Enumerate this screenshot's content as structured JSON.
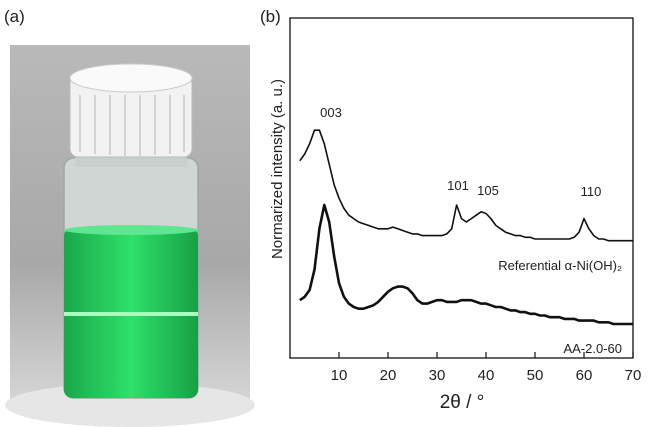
{
  "panel_labels": [
    "(a)",
    "(b)"
  ],
  "chart_data": {
    "type": "line",
    "xlabel": "2θ / °",
    "ylabel": "Normarized intensity (a. u.)",
    "annotations": [
      "003",
      "101",
      "105",
      "110"
    ],
    "xlim": [
      0,
      70
    ],
    "xticks": [
      10,
      20,
      30,
      40,
      50,
      60,
      70
    ],
    "ylim": [
      0,
      100
    ],
    "x": [
      2,
      3,
      4,
      5,
      6,
      7,
      8,
      9,
      10,
      11,
      12,
      13,
      14,
      15,
      16,
      17,
      18,
      19,
      20,
      21,
      22,
      23,
      24,
      25,
      26,
      27,
      28,
      29,
      30,
      31,
      32,
      33,
      34,
      35,
      36,
      37,
      38,
      39,
      40,
      41,
      42,
      43,
      44,
      45,
      46,
      47,
      48,
      49,
      50,
      51,
      52,
      53,
      54,
      55,
      56,
      57,
      58,
      59,
      60,
      61,
      62,
      63,
      64,
      65,
      66,
      67,
      68,
      69,
      70
    ],
    "series": [
      {
        "name": "Referential α-Ni(OH)₂",
        "color": "#111111",
        "values": [
          58,
          60,
          63,
          67,
          67,
          63,
          57,
          51,
          47,
          44,
          42,
          41,
          40,
          39.5,
          39,
          38.5,
          38,
          38,
          38,
          38.5,
          38,
          37.5,
          37,
          36.5,
          36.5,
          36,
          36,
          36,
          36,
          36,
          36.5,
          38,
          45,
          41,
          40,
          41,
          42,
          43,
          42.5,
          41,
          39,
          38,
          37,
          36.5,
          36,
          36,
          35.5,
          35.5,
          35,
          35,
          35,
          35,
          35,
          35,
          35,
          35,
          35.5,
          37,
          41,
          38,
          36,
          35,
          35,
          34.5,
          34.5,
          34.5,
          34.5,
          34.5,
          34.5
        ]
      },
      {
        "name": "AA-2.0-60",
        "color": "#111111",
        "values": [
          17,
          18,
          20,
          26,
          38,
          45,
          40,
          30,
          22,
          18,
          16,
          15,
          14.5,
          14.5,
          15,
          15.5,
          16.5,
          18,
          19.5,
          20.5,
          21,
          21,
          20.5,
          19,
          17,
          16,
          16,
          16.5,
          17,
          17,
          16.5,
          16.5,
          16.5,
          17,
          17,
          17,
          16.5,
          16,
          16,
          15.5,
          15,
          15,
          14.5,
          14,
          14,
          13.5,
          13.5,
          13,
          13,
          12.5,
          12.5,
          12,
          12,
          12,
          11.5,
          11.5,
          11.5,
          11,
          11,
          11,
          11,
          10.5,
          10.5,
          10.5,
          10,
          10,
          10,
          10,
          10
        ]
      }
    ]
  }
}
